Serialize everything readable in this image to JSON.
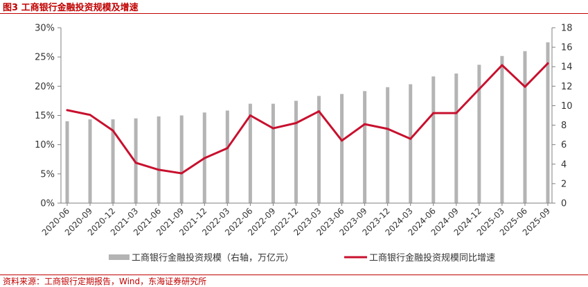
{
  "title": "图3  工商银行金融投资规模及增速",
  "source": "资料来源：工商银行定期报告，Wind，东海证券研究所",
  "chart_data": {
    "type": "bar",
    "categories": [
      "2020-06",
      "2020-09",
      "2020-12",
      "2021-03",
      "2021-06",
      "2021-09",
      "2021-12",
      "2022-03",
      "2022-06",
      "2022-09",
      "2022-12",
      "2023-03",
      "2023-06",
      "2023-09",
      "2023-12",
      "2024-03",
      "2024-06",
      "2024-09",
      "2024-12",
      "2025-03",
      "2025-06",
      "2025-09"
    ],
    "series": [
      {
        "name": "工商银行金融投资规模（右轴，万亿元）",
        "type": "bar",
        "axis": "right",
        "color": "#b4b4b4",
        "values": [
          8.4,
          8.6,
          8.6,
          8.7,
          8.9,
          9.0,
          9.3,
          9.5,
          10.2,
          10.2,
          10.5,
          11.0,
          11.2,
          11.5,
          11.9,
          12.2,
          13.0,
          13.3,
          14.2,
          15.1,
          15.6,
          16.5
        ]
      },
      {
        "name": "工商银行金融投资规模同比增速",
        "type": "line",
        "axis": "left",
        "color": "#c8102e",
        "values": [
          15.9,
          15.1,
          12.4,
          6.9,
          5.7,
          5.1,
          7.7,
          9.4,
          15.0,
          12.8,
          13.7,
          15.7,
          10.7,
          13.5,
          12.7,
          11.0,
          15.4,
          15.4,
          19.5,
          23.6,
          19.9,
          23.9
        ]
      }
    ],
    "left_axis": {
      "min": 0,
      "max": 30,
      "step": 5,
      "ticks": [
        "0%",
        "5%",
        "10%",
        "15%",
        "20%",
        "25%",
        "30%"
      ]
    },
    "right_axis": {
      "min": 0,
      "max": 18,
      "step": 2,
      "ticks": [
        "0",
        "2",
        "4",
        "6",
        "8",
        "10",
        "12",
        "14",
        "16",
        "18"
      ]
    },
    "grid": false,
    "legend_position": "bottom"
  }
}
